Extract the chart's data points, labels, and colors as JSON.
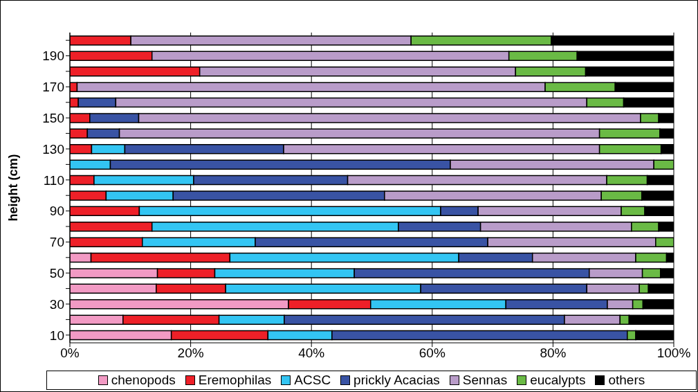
{
  "chart_data": {
    "type": "bar",
    "orientation": "horizontal",
    "stacked": true,
    "ylabel": "height (cm)",
    "categories": [
      null,
      "190",
      null,
      "170",
      null,
      "150",
      null,
      "130",
      null,
      "110",
      null,
      "90",
      null,
      "70",
      null,
      "50",
      null,
      "30",
      null,
      "10"
    ],
    "series": [
      {
        "name": "chenopods",
        "color": "#f29ac4",
        "values": [
          0,
          0,
          0,
          0,
          0,
          0,
          0,
          0,
          0,
          0,
          0,
          0,
          0,
          0,
          3.5,
          14.5,
          14.3,
          36.2,
          8.8,
          16.8
        ]
      },
      {
        "name": "Eremophilas",
        "color": "#ee2028",
        "values": [
          10.1,
          13.6,
          21.5,
          1.2,
          1.4,
          3.3,
          2.9,
          3.6,
          0,
          4,
          6,
          11.5,
          13.6,
          12,
          23,
          9.5,
          11.5,
          13.6,
          15.9,
          16
        ]
      },
      {
        "name": "ACSC",
        "color": "#33c5f3",
        "values": [
          0,
          0,
          0,
          0,
          0,
          0,
          0,
          5.5,
          6.7,
          16.5,
          11.1,
          49.9,
          40.8,
          18.7,
          37.9,
          23.1,
          32.3,
          22.4,
          10.8,
          10.6
        ]
      },
      {
        "name": "prickly Acacias",
        "color": "#3953a4",
        "values": [
          0,
          0,
          0,
          0,
          6.2,
          8.1,
          5.3,
          26.3,
          56.3,
          25.5,
          35,
          6.2,
          13.6,
          38.5,
          12.2,
          38.9,
          27.5,
          16.8,
          46.4,
          48.9
        ]
      },
      {
        "name": "Sennas",
        "color": "#b99cc9",
        "values": [
          46.4,
          59.1,
          52.3,
          77.5,
          78,
          83.1,
          79.5,
          52.3,
          33.7,
          42.9,
          35.9,
          23.7,
          25,
          27.8,
          17.1,
          8.8,
          8.7,
          4.2,
          9.2,
          0
        ]
      },
      {
        "name": "eucalypts",
        "color": "#6aba45",
        "values": [
          23.2,
          11.3,
          11.6,
          11.6,
          6.1,
          3,
          10,
          10.2,
          3.3,
          6.7,
          6.7,
          3.9,
          4.5,
          3,
          5.1,
          3,
          1.5,
          1.7,
          1.5,
          1.4
        ]
      },
      {
        "name": "others",
        "color": "#000000",
        "values": [
          20.3,
          16,
          14.6,
          9.7,
          8.3,
          2.5,
          2.3,
          2.1,
          0,
          4.4,
          5.3,
          4.8,
          2.5,
          0,
          1.2,
          2.2,
          4.2,
          5.1,
          7.4,
          6.3
        ]
      }
    ],
    "xlim": [
      0,
      100
    ],
    "xticks": [
      {
        "value": 0,
        "label": "0%"
      },
      {
        "value": 20,
        "label": "20%"
      },
      {
        "value": 40,
        "label": "40%"
      },
      {
        "value": 60,
        "label": "60%"
      },
      {
        "value": 80,
        "label": "80%"
      },
      {
        "value": 100,
        "label": "100%"
      }
    ],
    "grid": "x",
    "legend": "bottom"
  }
}
